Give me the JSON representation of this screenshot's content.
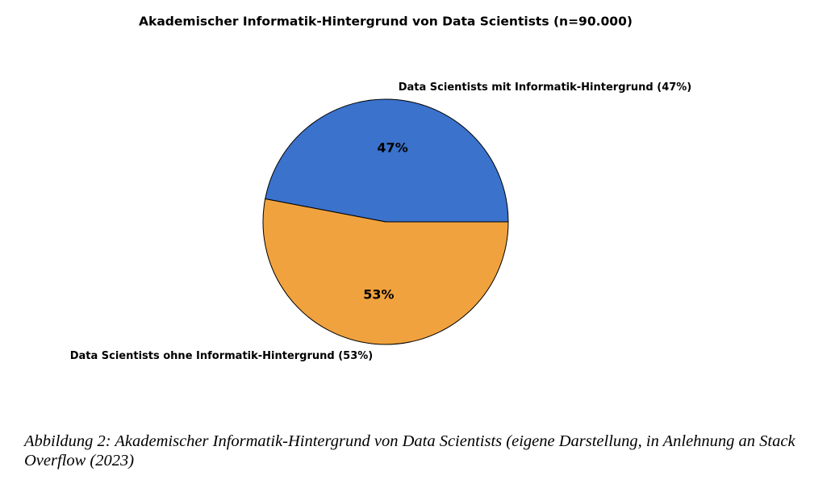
{
  "chart_data": {
    "type": "pie",
    "title": "Akademischer Informatik-Hintergrund von Data Scientists (n=90.000)",
    "categories": [
      "Data Scientists mit Informatik-Hintergrund (47%)",
      "Data Scientists ohne Informatik-Hintergrund (53%)"
    ],
    "values": [
      47,
      53
    ],
    "value_labels": [
      "47%",
      "53%"
    ],
    "colors": [
      "#3a72cc",
      "#f0a23e"
    ]
  },
  "caption": "Abbildung 2: Akademischer Informatik-Hintergrund von Data Scientists (eigene Darstellung, in Anlehnung an Stack Overflow (2023)"
}
